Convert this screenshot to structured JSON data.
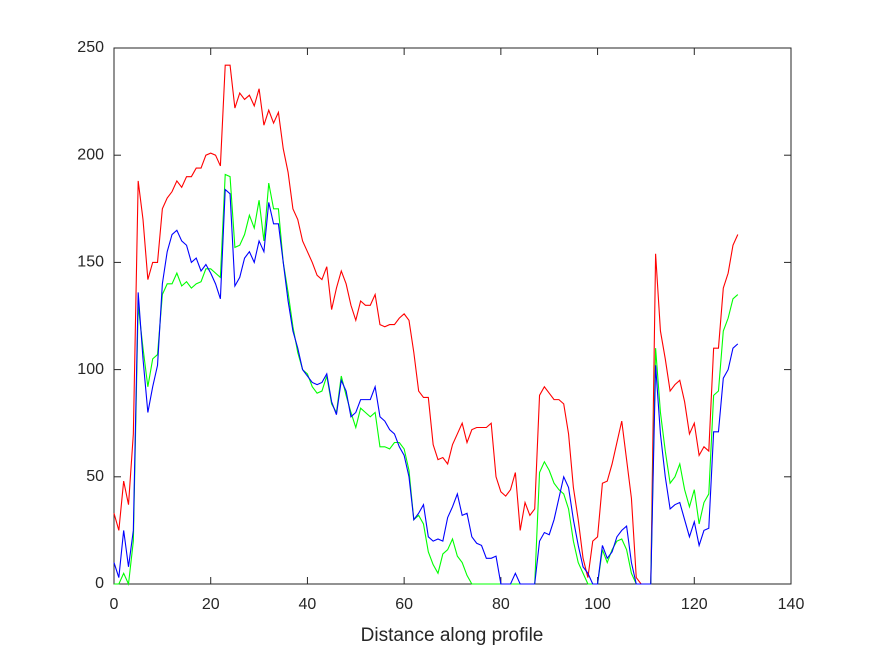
{
  "chart_data": {
    "type": "line",
    "xlabel": "Distance along profile",
    "x": [
      0,
      1,
      2,
      3,
      4,
      5,
      6,
      7,
      8,
      9,
      10,
      11,
      12,
      13,
      14,
      15,
      16,
      17,
      18,
      19,
      20,
      21,
      22,
      23,
      24,
      25,
      26,
      27,
      28,
      29,
      30,
      31,
      32,
      33,
      34,
      35,
      36,
      37,
      38,
      39,
      40,
      41,
      42,
      43,
      44,
      45,
      46,
      47,
      48,
      49,
      50,
      51,
      52,
      53,
      54,
      55,
      56,
      57,
      58,
      59,
      60,
      61,
      62,
      63,
      64,
      65,
      66,
      67,
      68,
      69,
      70,
      71,
      72,
      73,
      74,
      75,
      76,
      77,
      78,
      79,
      80,
      81,
      82,
      83,
      84,
      85,
      86,
      87,
      88,
      89,
      90,
      91,
      92,
      93,
      94,
      95,
      96,
      97,
      98,
      99,
      100,
      101,
      102,
      103,
      104,
      105,
      106,
      107,
      108,
      109,
      110,
      111,
      112,
      113,
      114,
      115,
      116,
      117,
      118,
      119,
      120,
      121,
      122,
      123,
      124,
      125,
      126,
      127,
      128,
      129
    ],
    "series": [
      {
        "color": "#ff0000",
        "values": [
          33,
          25,
          48,
          37,
          70,
          188,
          170,
          142,
          150,
          150,
          175,
          180,
          183,
          188,
          185,
          190,
          190,
          194,
          194,
          200,
          201,
          200,
          195,
          242,
          242,
          222,
          229,
          226,
          228,
          223,
          231,
          214,
          221,
          215,
          220,
          203,
          192,
          175,
          170,
          160,
          155,
          150,
          144,
          142,
          148,
          128,
          138,
          146,
          140,
          130,
          123,
          132,
          130,
          130,
          135,
          121,
          120,
          121,
          121,
          124,
          126,
          123,
          108,
          90,
          87,
          87,
          65,
          58,
          59,
          56,
          65,
          70,
          75,
          66,
          72,
          73,
          73,
          73,
          75,
          50,
          43,
          41,
          44,
          52,
          25,
          38,
          32,
          35,
          88,
          92,
          89,
          86,
          86,
          84,
          70,
          45,
          30,
          12,
          3,
          20,
          22,
          47,
          48,
          56,
          66,
          76,
          58,
          40,
          3,
          0,
          0,
          0,
          154,
          118,
          105,
          90,
          93,
          95,
          85,
          70,
          75,
          60,
          64,
          62,
          110,
          110,
          138,
          145,
          158,
          163
        ]
      },
      {
        "color": "#00ff00",
        "values": [
          0,
          0,
          5,
          0,
          20,
          130,
          110,
          92,
          105,
          107,
          135,
          140,
          140,
          145,
          139,
          141,
          138,
          140,
          141,
          147,
          147,
          145,
          143,
          191,
          190,
          157,
          158,
          163,
          172,
          166,
          179,
          160,
          187,
          175,
          175,
          150,
          136,
          120,
          108,
          100,
          98,
          92,
          89,
          90,
          97,
          84,
          80,
          97,
          88,
          80,
          73,
          82,
          80,
          78,
          80,
          64,
          64,
          63,
          66,
          66,
          63,
          53,
          30,
          32,
          28,
          15,
          9,
          5,
          14,
          16,
          21,
          13,
          10,
          4,
          0,
          0,
          0,
          0,
          0,
          0,
          0,
          0,
          0,
          0,
          0,
          0,
          0,
          0,
          52,
          57,
          53,
          47,
          44,
          42,
          35,
          20,
          10,
          5,
          0,
          0,
          0,
          16,
          10,
          16,
          20,
          21,
          16,
          5,
          0,
          0,
          0,
          0,
          110,
          80,
          62,
          47,
          50,
          56,
          44,
          36,
          44,
          28,
          38,
          42,
          88,
          90,
          118,
          124,
          133,
          135
        ]
      },
      {
        "color": "#0000ff",
        "values": [
          10,
          3,
          25,
          8,
          25,
          136,
          105,
          80,
          92,
          102,
          140,
          155,
          163,
          165,
          160,
          158,
          150,
          152,
          146,
          149,
          145,
          140,
          133,
          184,
          182,
          139,
          143,
          152,
          155,
          150,
          160,
          155,
          178,
          168,
          168,
          150,
          132,
          118,
          110,
          100,
          97,
          94,
          93,
          94,
          98,
          85,
          79,
          95,
          90,
          78,
          80,
          86,
          86,
          86,
          92,
          78,
          76,
          72,
          70,
          64,
          60,
          50,
          30,
          33,
          37,
          22,
          20,
          21,
          20,
          31,
          36,
          42,
          32,
          33,
          22,
          19,
          18,
          12,
          12,
          13,
          0,
          0,
          0,
          5,
          0,
          0,
          0,
          0,
          20,
          24,
          23,
          30,
          40,
          50,
          45,
          30,
          18,
          8,
          5,
          0,
          0,
          18,
          12,
          15,
          22,
          25,
          27,
          10,
          0,
          0,
          0,
          0,
          102,
          70,
          50,
          35,
          37,
          38,
          30,
          22,
          29,
          18,
          25,
          26,
          71,
          71,
          96,
          100,
          110,
          112
        ]
      }
    ],
    "xlim": [
      0,
      140
    ],
    "xticks": [
      0,
      20,
      40,
      60,
      80,
      100,
      120,
      140
    ],
    "ylim": [
      0,
      250
    ],
    "yticks": [
      0,
      50,
      100,
      150,
      200,
      250
    ]
  }
}
